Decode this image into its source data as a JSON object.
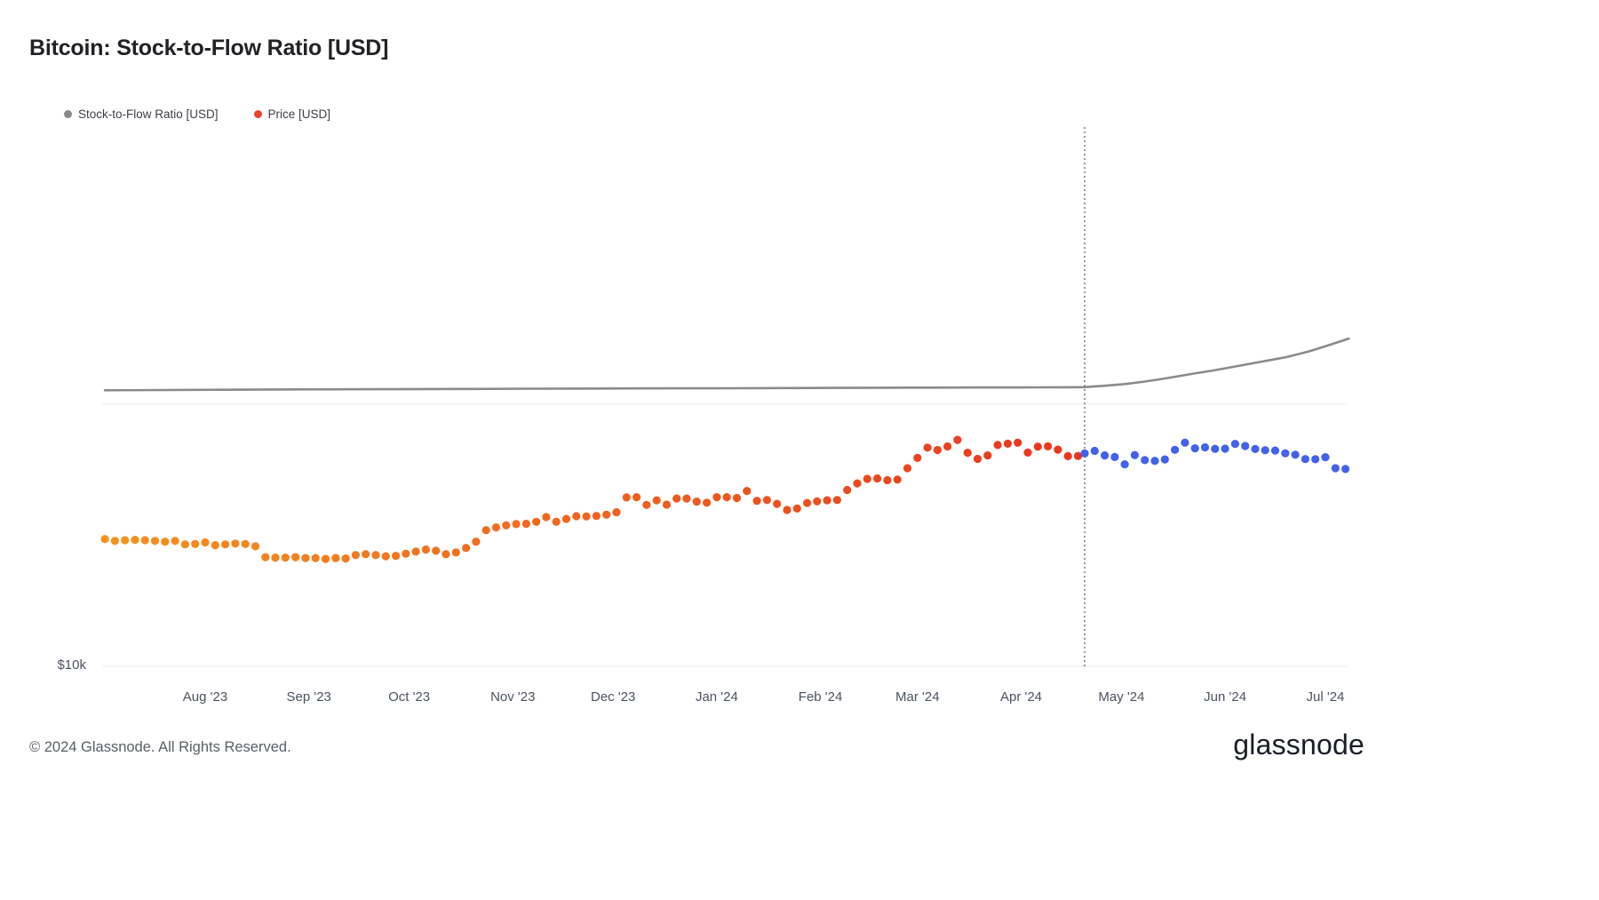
{
  "page": {
    "title": "Bitcoin: Stock-to-Flow Ratio [USD]"
  },
  "legend": {
    "items": [
      {
        "label": "Stock-to-Flow Ratio [USD]",
        "color": "#8a8a8a"
      },
      {
        "label": "Price [USD]",
        "color": "#ed402d"
      }
    ]
  },
  "footer": {
    "copyright": "© 2024 Glassnode. All Rights Reserved.",
    "brand": "glassnode"
  },
  "chart_data": {
    "type": "line+scatter",
    "title": "Bitcoin: Stock-to-Flow Ratio [USD]",
    "y_axis": {
      "scale": "log",
      "tick_label": "$10k",
      "tick_value": 10000,
      "gridlines": [
        10000,
        100000
      ]
    },
    "x_axis": {
      "ticks": [
        {
          "label": "Aug '23",
          "date": "2023-08-01"
        },
        {
          "label": "Sep '23",
          "date": "2023-09-01"
        },
        {
          "label": "Oct '23",
          "date": "2023-10-01"
        },
        {
          "label": "Nov '23",
          "date": "2023-11-01"
        },
        {
          "label": "Dec '23",
          "date": "2023-12-01"
        },
        {
          "label": "Jan '24",
          "date": "2024-01-01"
        },
        {
          "label": "Feb '24",
          "date": "2024-02-01"
        },
        {
          "label": "Mar '24",
          "date": "2024-03-01"
        },
        {
          "label": "Apr '24",
          "date": "2024-04-01"
        },
        {
          "label": "May '24",
          "date": "2024-05-01"
        },
        {
          "label": "Jun '24",
          "date": "2024-06-01"
        },
        {
          "label": "Jul '24",
          "date": "2024-07-01"
        }
      ]
    },
    "annotations": {
      "halving_marker": {
        "type": "vertical-dotted-line",
        "date": "2024-04-20",
        "color": "#5b5b5b"
      }
    },
    "series": [
      {
        "name": "Stock-to-Flow Ratio [USD]",
        "type": "line",
        "color": "#8a8a8a",
        "points": [
          [
            "2023-07-02",
            113000
          ],
          [
            "2023-07-20",
            113300
          ],
          [
            "2023-08-05",
            113600
          ],
          [
            "2023-08-20",
            113800
          ],
          [
            "2023-09-05",
            114000
          ],
          [
            "2023-09-20",
            114100
          ],
          [
            "2023-10-05",
            114300
          ],
          [
            "2023-10-20",
            114400
          ],
          [
            "2023-11-05",
            114600
          ],
          [
            "2023-11-20",
            114700
          ],
          [
            "2023-12-05",
            114900
          ],
          [
            "2023-12-20",
            115000
          ],
          [
            "2024-01-05",
            115100
          ],
          [
            "2024-01-20",
            115300
          ],
          [
            "2024-02-05",
            115400
          ],
          [
            "2024-02-20",
            115600
          ],
          [
            "2024-03-05",
            115700
          ],
          [
            "2024-03-20",
            115900
          ],
          [
            "2024-04-05",
            116000
          ],
          [
            "2024-04-15",
            116100
          ],
          [
            "2024-04-20",
            116300
          ],
          [
            "2024-04-26",
            117600
          ],
          [
            "2024-05-02",
            119400
          ],
          [
            "2024-05-08",
            122000
          ],
          [
            "2024-05-15",
            126000
          ],
          [
            "2024-05-22",
            130500
          ],
          [
            "2024-05-29",
            135000
          ],
          [
            "2024-06-05",
            140000
          ],
          [
            "2024-06-12",
            145500
          ],
          [
            "2024-06-19",
            151000
          ],
          [
            "2024-06-26",
            159000
          ],
          [
            "2024-07-02",
            168000
          ],
          [
            "2024-07-08",
            178000
          ]
        ]
      },
      {
        "name": "Price [USD]",
        "type": "scatter",
        "colors": {
          "start": "#F6921E",
          "end": "#E9341F",
          "post_halving": "#4262EB"
        },
        "points": [
          [
            "2023-07-02",
            30600
          ],
          [
            "2023-07-05",
            30100
          ],
          [
            "2023-07-08",
            30300
          ],
          [
            "2023-07-11",
            30400
          ],
          [
            "2023-07-14",
            30300
          ],
          [
            "2023-07-17",
            30100
          ],
          [
            "2023-07-20",
            29900
          ],
          [
            "2023-07-23",
            30100
          ],
          [
            "2023-07-26",
            29200
          ],
          [
            "2023-07-29",
            29300
          ],
          [
            "2023-08-01",
            29700
          ],
          [
            "2023-08-04",
            29000
          ],
          [
            "2023-08-07",
            29200
          ],
          [
            "2023-08-10",
            29400
          ],
          [
            "2023-08-13",
            29300
          ],
          [
            "2023-08-16",
            28700
          ],
          [
            "2023-08-19",
            26100
          ],
          [
            "2023-08-22",
            26000
          ],
          [
            "2023-08-25",
            26000
          ],
          [
            "2023-08-28",
            26100
          ],
          [
            "2023-08-31",
            25900
          ],
          [
            "2023-09-03",
            25900
          ],
          [
            "2023-09-06",
            25700
          ],
          [
            "2023-09-09",
            25900
          ],
          [
            "2023-09-12",
            25800
          ],
          [
            "2023-09-15",
            26600
          ],
          [
            "2023-09-18",
            26800
          ],
          [
            "2023-09-21",
            26600
          ],
          [
            "2023-09-24",
            26300
          ],
          [
            "2023-09-27",
            26400
          ],
          [
            "2023-09-30",
            26900
          ],
          [
            "2023-10-03",
            27400
          ],
          [
            "2023-10-06",
            27900
          ],
          [
            "2023-10-09",
            27600
          ],
          [
            "2023-10-12",
            26800
          ],
          [
            "2023-10-15",
            27200
          ],
          [
            "2023-10-18",
            28300
          ],
          [
            "2023-10-21",
            29900
          ],
          [
            "2023-10-24",
            33100
          ],
          [
            "2023-10-27",
            33900
          ],
          [
            "2023-10-30",
            34500
          ],
          [
            "2023-11-02",
            34900
          ],
          [
            "2023-11-05",
            35000
          ],
          [
            "2023-11-08",
            35600
          ],
          [
            "2023-11-11",
            37100
          ],
          [
            "2023-11-14",
            35600
          ],
          [
            "2023-11-17",
            36500
          ],
          [
            "2023-11-20",
            37400
          ],
          [
            "2023-11-23",
            37300
          ],
          [
            "2023-11-26",
            37500
          ],
          [
            "2023-11-29",
            37900
          ],
          [
            "2023-12-02",
            38700
          ],
          [
            "2023-12-05",
            44100
          ],
          [
            "2023-12-08",
            44200
          ],
          [
            "2023-12-11",
            41300
          ],
          [
            "2023-12-14",
            43000
          ],
          [
            "2023-12-17",
            41400
          ],
          [
            "2023-12-20",
            43700
          ],
          [
            "2023-12-23",
            43700
          ],
          [
            "2023-12-26",
            42500
          ],
          [
            "2023-12-29",
            42100
          ],
          [
            "2024-01-01",
            44200
          ],
          [
            "2024-01-04",
            44200
          ],
          [
            "2024-01-07",
            43900
          ],
          [
            "2024-01-10",
            46700
          ],
          [
            "2024-01-13",
            42800
          ],
          [
            "2024-01-16",
            43100
          ],
          [
            "2024-01-19",
            41700
          ],
          [
            "2024-01-22",
            39500
          ],
          [
            "2024-01-25",
            40000
          ],
          [
            "2024-01-28",
            42000
          ],
          [
            "2024-01-31",
            42600
          ],
          [
            "2024-02-03",
            43000
          ],
          [
            "2024-02-06",
            43100
          ],
          [
            "2024-02-09",
            47100
          ],
          [
            "2024-02-12",
            49900
          ],
          [
            "2024-02-15",
            51900
          ],
          [
            "2024-02-18",
            52100
          ],
          [
            "2024-02-21",
            51300
          ],
          [
            "2024-02-24",
            51600
          ],
          [
            "2024-02-27",
            57000
          ],
          [
            "2024-03-01",
            62400
          ],
          [
            "2024-03-04",
            68300
          ],
          [
            "2024-03-07",
            66900
          ],
          [
            "2024-03-10",
            69000
          ],
          [
            "2024-03-13",
            73100
          ],
          [
            "2024-03-16",
            65300
          ],
          [
            "2024-03-19",
            61900
          ],
          [
            "2024-03-22",
            63800
          ],
          [
            "2024-03-25",
            69900
          ],
          [
            "2024-03-28",
            70700
          ],
          [
            "2024-03-31",
            71300
          ],
          [
            "2024-04-03",
            65400
          ],
          [
            "2024-04-06",
            68900
          ],
          [
            "2024-04-09",
            69100
          ],
          [
            "2024-04-12",
            67100
          ],
          [
            "2024-04-15",
            63400
          ],
          [
            "2024-04-18",
            63500
          ],
          [
            "2024-04-20",
            64900
          ],
          [
            "2024-04-23",
            66400
          ],
          [
            "2024-04-26",
            63800
          ],
          [
            "2024-04-29",
            62900
          ],
          [
            "2024-05-02",
            59000
          ],
          [
            "2024-05-05",
            64000
          ],
          [
            "2024-05-08",
            61200
          ],
          [
            "2024-05-11",
            60800
          ],
          [
            "2024-05-14",
            61600
          ],
          [
            "2024-05-17",
            67000
          ],
          [
            "2024-05-20",
            71400
          ],
          [
            "2024-05-23",
            67900
          ],
          [
            "2024-05-26",
            68500
          ],
          [
            "2024-05-29",
            67600
          ],
          [
            "2024-06-01",
            67700
          ],
          [
            "2024-06-04",
            70600
          ],
          [
            "2024-06-07",
            69300
          ],
          [
            "2024-06-10",
            67500
          ],
          [
            "2024-06-13",
            66800
          ],
          [
            "2024-06-16",
            66600
          ],
          [
            "2024-06-19",
            65000
          ],
          [
            "2024-06-22",
            64200
          ],
          [
            "2024-06-25",
            61800
          ],
          [
            "2024-06-28",
            61700
          ],
          [
            "2024-07-01",
            62800
          ],
          [
            "2024-07-04",
            57000
          ],
          [
            "2024-07-07",
            56600
          ]
        ]
      }
    ]
  }
}
